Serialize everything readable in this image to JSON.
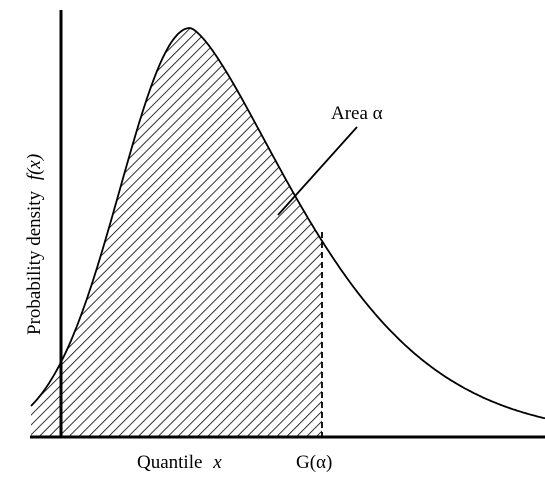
{
  "diagram": {
    "y_axis_label": "Probability density",
    "y_axis_var": "f(x)",
    "x_axis_label": "Quantile",
    "x_axis_var": "x",
    "quantile_marker": "G(α)",
    "area_label": "Area α"
  }
}
